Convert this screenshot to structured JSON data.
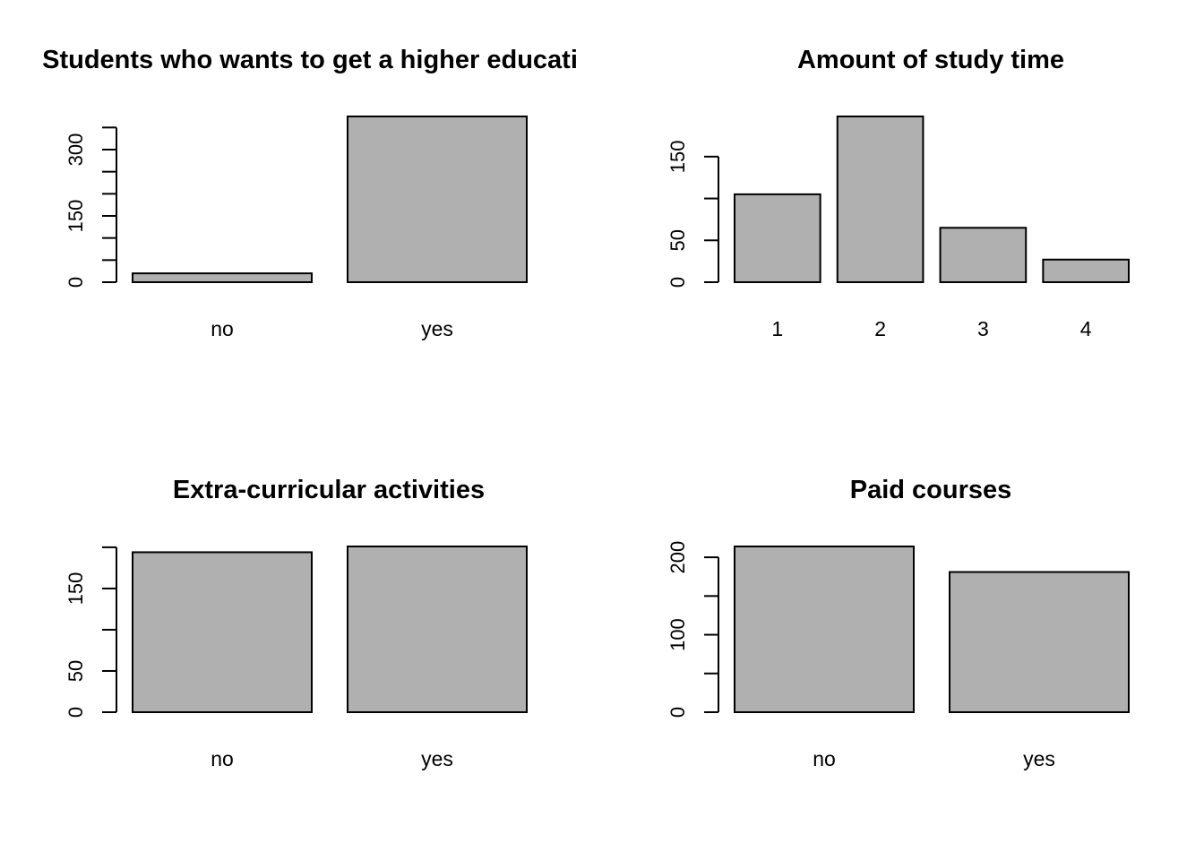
{
  "chart_data": [
    {
      "type": "bar",
      "title": "Students who wants to get a higher educati",
      "categories": [
        "no",
        "yes"
      ],
      "values": [
        20,
        375
      ],
      "ylim": [
        0,
        375
      ],
      "y_ticks": [
        0,
        50,
        100,
        150,
        200,
        250,
        300,
        350
      ],
      "y_tick_labels": [
        "0",
        "",
        "",
        "150",
        "",
        "",
        "300",
        ""
      ],
      "xlabel": "",
      "ylabel": "",
      "grid": false,
      "bar_color": "#b0b0b0"
    },
    {
      "type": "bar",
      "title": "Amount of study time",
      "categories": [
        "1",
        "2",
        "3",
        "4"
      ],
      "values": [
        105,
        198,
        65,
        27
      ],
      "ylim": [
        0,
        198
      ],
      "y_ticks": [
        0,
        50,
        100,
        150
      ],
      "y_tick_labels": [
        "0",
        "50",
        "",
        "150"
      ],
      "xlabel": "",
      "ylabel": "",
      "grid": false,
      "bar_color": "#b0b0b0"
    },
    {
      "type": "bar",
      "title": "Extra-curricular activities",
      "categories": [
        "no",
        "yes"
      ],
      "values": [
        194,
        201
      ],
      "ylim": [
        0,
        201
      ],
      "y_ticks": [
        0,
        50,
        100,
        150,
        200
      ],
      "y_tick_labels": [
        "0",
        "50",
        "",
        "150",
        ""
      ],
      "xlabel": "",
      "ylabel": "",
      "grid": false,
      "bar_color": "#b0b0b0"
    },
    {
      "type": "bar",
      "title": "Paid courses",
      "categories": [
        "no",
        "yes"
      ],
      "values": [
        214,
        181
      ],
      "ylim": [
        0,
        214
      ],
      "y_ticks": [
        0,
        50,
        100,
        150,
        200
      ],
      "y_tick_labels": [
        "0",
        "",
        "100",
        "",
        "200"
      ],
      "xlabel": "",
      "ylabel": "",
      "grid": false,
      "bar_color": "#b0b0b0"
    }
  ]
}
